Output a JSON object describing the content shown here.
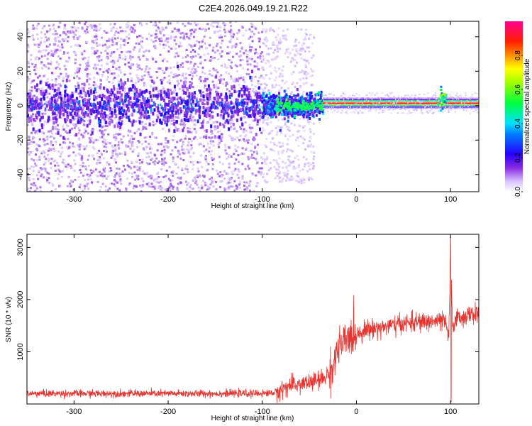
{
  "title": "C2E4.2026.049.19.21.R22",
  "chart_data": [
    {
      "type": "heatmap",
      "xlabel": "Height of straight line (km)",
      "ylabel": "Frequency (Hz)",
      "xlim": [
        -350,
        130
      ],
      "ylim": [
        -50,
        49
      ],
      "xticks": [
        -300,
        -200,
        -100,
        0,
        100
      ],
      "yticks": [
        -40,
        -20,
        0,
        20,
        40
      ],
      "colorbar": {
        "label": "Normalized spectral amplitude",
        "range": [
          0.0,
          1.0
        ],
        "ticks": [
          "0.0",
          "0.2",
          "0.4",
          "0.6",
          "0.8"
        ],
        "colors": [
          "#ffffff",
          "#c9a6ff",
          "#7b00ff",
          "#0000ff",
          "#00ffff",
          "#00ff00",
          "#ffff00",
          "#ff8000",
          "#ff0000",
          "#ff00aa"
        ]
      },
      "regions": [
        {
          "x_range": [
            -350,
            -100
          ],
          "description_values": {
            "band_center_hz": 0,
            "band_halfwidth_hz": 10,
            "scatter_extent_hz": [
              -50,
              49
            ],
            "typical_amplitude": 0.15
          }
        },
        {
          "x_range": [
            -100,
            -35
          ],
          "description_values": {
            "band_center_hz": 0,
            "band_halfwidth_hz": 6,
            "typical_amplitude": 0.45
          }
        },
        {
          "x_range": [
            -35,
            130
          ],
          "description_values": {
            "band_center_hz": 1.5,
            "band_halfwidth_hz": 2,
            "typical_amplitude": 0.85
          }
        }
      ],
      "features": [
        {
          "x": 92,
          "y": 3,
          "amplitude": 0.7
        }
      ]
    },
    {
      "type": "line",
      "xlabel": "Height of straight line (km)",
      "ylabel": "SNR (10 * v/v)",
      "xlim": [
        -350,
        130
      ],
      "ylim": [
        0,
        3250
      ],
      "xticks": [
        -300,
        -200,
        -100,
        0,
        100
      ],
      "yticks": [
        1000,
        2000,
        3000
      ],
      "color": "#e8332e",
      "series": [
        {
          "x": [
            -350,
            -300,
            -250,
            -200,
            -150,
            -100,
            -85,
            -75,
            -60,
            -45,
            -35,
            -25,
            -20,
            -10,
            0,
            10,
            20,
            30,
            40,
            50,
            60,
            70,
            80,
            90,
            95,
            98,
            100,
            102,
            105,
            110,
            120,
            130
          ],
          "values": [
            200,
            200,
            200,
            200,
            200,
            200,
            220,
            330,
            380,
            430,
            480,
            700,
            1050,
            1230,
            1350,
            1420,
            1450,
            1480,
            1510,
            1540,
            1560,
            1570,
            1580,
            1590,
            1550,
            1250,
            2900,
            1450,
            1650,
            1650,
            1700,
            1750
          ]
        }
      ]
    }
  ]
}
